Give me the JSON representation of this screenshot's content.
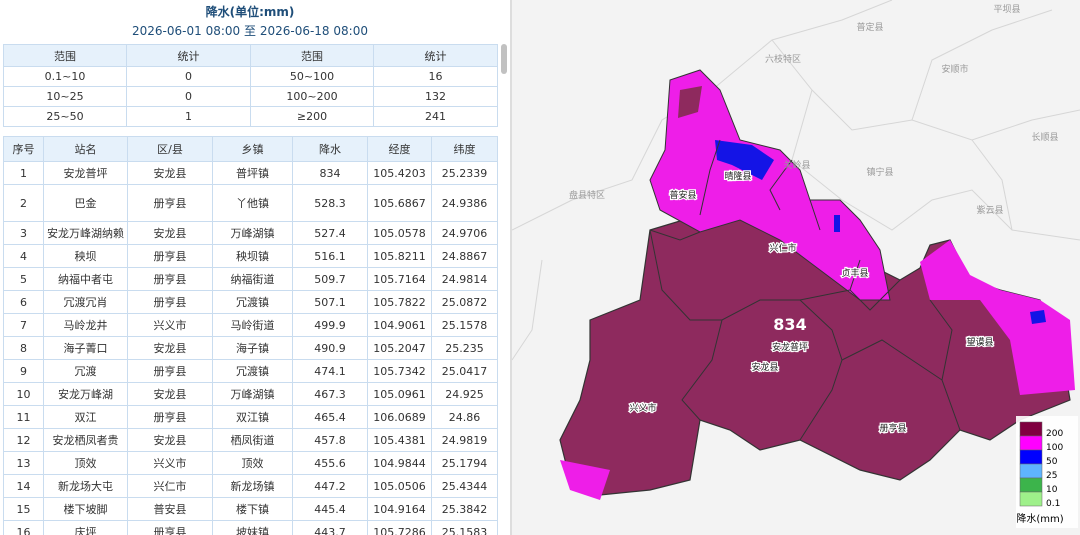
{
  "header": {
    "title": "降水(单位:mm)",
    "start": "2026-06-01 08:00",
    "separator": "至",
    "end": "2026-06-18 08:00"
  },
  "summary": {
    "columns": [
      "范围",
      "统计",
      "范围",
      "统计"
    ],
    "rows": [
      [
        "0.1~10",
        "0",
        "50~100",
        "16"
      ],
      [
        "10~25",
        "0",
        "100~200",
        "132"
      ],
      [
        "25~50",
        "1",
        "≥200",
        "241"
      ]
    ]
  },
  "stations": {
    "columns": [
      "序号",
      "站名",
      "区/县",
      "乡镇",
      "降水",
      "经度",
      "纬度"
    ],
    "rows": [
      [
        "1",
        "安龙普坪",
        "安龙县",
        "普坪镇",
        "834",
        "105.4203",
        "25.2339"
      ],
      [
        "2",
        "巴金",
        "册亨县",
        "丫他镇",
        "528.3",
        "105.6867",
        "24.9386"
      ],
      [
        "3",
        "安龙万峰湖纳赖",
        "安龙县",
        "万峰湖镇",
        "527.4",
        "105.0578",
        "24.9706"
      ],
      [
        "4",
        "秧坝",
        "册亨县",
        "秧坝镇",
        "516.1",
        "105.8211",
        "24.8867"
      ],
      [
        "5",
        "纳福中者屯",
        "册亨县",
        "纳福街道",
        "509.7",
        "105.7164",
        "24.9814"
      ],
      [
        "6",
        "冗渡冗肖",
        "册亨县",
        "冗渡镇",
        "507.1",
        "105.7822",
        "25.0872"
      ],
      [
        "7",
        "马岭龙井",
        "兴义市",
        "马岭街道",
        "499.9",
        "104.9061",
        "25.1578"
      ],
      [
        "8",
        "海子菁口",
        "安龙县",
        "海子镇",
        "490.9",
        "105.2047",
        "25.235"
      ],
      [
        "9",
        "冗渡",
        "册亨县",
        "冗渡镇",
        "474.1",
        "105.7342",
        "25.0417"
      ],
      [
        "10",
        "安龙万峰湖",
        "安龙县",
        "万峰湖镇",
        "467.3",
        "105.0961",
        "24.925"
      ],
      [
        "11",
        "双江",
        "册亨县",
        "双江镇",
        "465.4",
        "106.0689",
        "24.86"
      ],
      [
        "12",
        "安龙栖凤者贵",
        "安龙县",
        "栖凤街道",
        "457.8",
        "105.4381",
        "24.9819"
      ],
      [
        "13",
        "顶效",
        "兴义市",
        "顶效",
        "455.6",
        "104.9844",
        "25.1794"
      ],
      [
        "14",
        "新龙场大屯",
        "兴仁市",
        "新龙场镇",
        "447.2",
        "105.0506",
        "25.4344"
      ],
      [
        "15",
        "楼下坡脚",
        "普安县",
        "楼下镇",
        "445.4",
        "104.9164",
        "25.3842"
      ],
      [
        "16",
        "庆坪",
        "册亨县",
        "坡妹镇",
        "443.7",
        "105.7286",
        "25.1583"
      ]
    ]
  },
  "map": {
    "background_labels": [
      "平坝县",
      "普定县",
      "六枝特区",
      "安顺市",
      "长顺县",
      "关岭县",
      "镇宁县",
      "盘县特区",
      "紫云县"
    ],
    "county_labels": [
      "普安县",
      "晴隆县",
      "兴仁市",
      "贞丰县",
      "望谟县",
      "兴义市",
      "安龙县",
      "册亨县"
    ],
    "max_value": "834",
    "max_station": "安龙普坪",
    "legend": {
      "labels": [
        "200",
        "100",
        "50",
        "25",
        "10",
        "0.1"
      ],
      "title": "降水(mm)"
    }
  }
}
